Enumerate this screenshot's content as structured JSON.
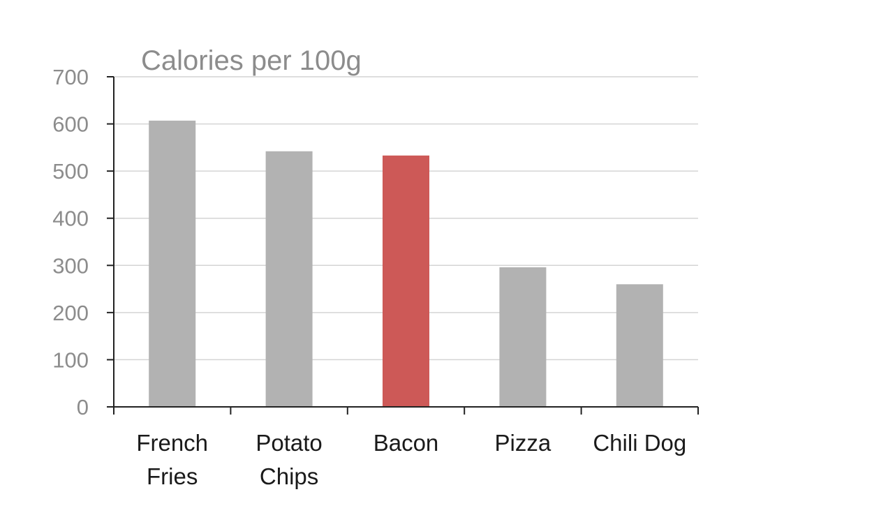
{
  "chart_data": {
    "type": "bar",
    "title": "Calories per 100g",
    "xlabel": "",
    "ylabel": "",
    "categories": [
      [
        "French",
        "Fries"
      ],
      [
        "Potato",
        "Chips"
      ],
      [
        "Bacon"
      ],
      [
        "Pizza"
      ],
      [
        "Chili Dog"
      ]
    ],
    "values": [
      607,
      542,
      533,
      296,
      260
    ],
    "ylim": [
      0,
      700
    ],
    "yticks": [
      "0",
      "100",
      "200",
      "300",
      "400",
      "500",
      "600",
      "700"
    ],
    "grid": true,
    "legend": "none",
    "colors": {
      "default": "#b2b2b2",
      "highlight": "#cd5957"
    },
    "highlight_index": 2
  }
}
